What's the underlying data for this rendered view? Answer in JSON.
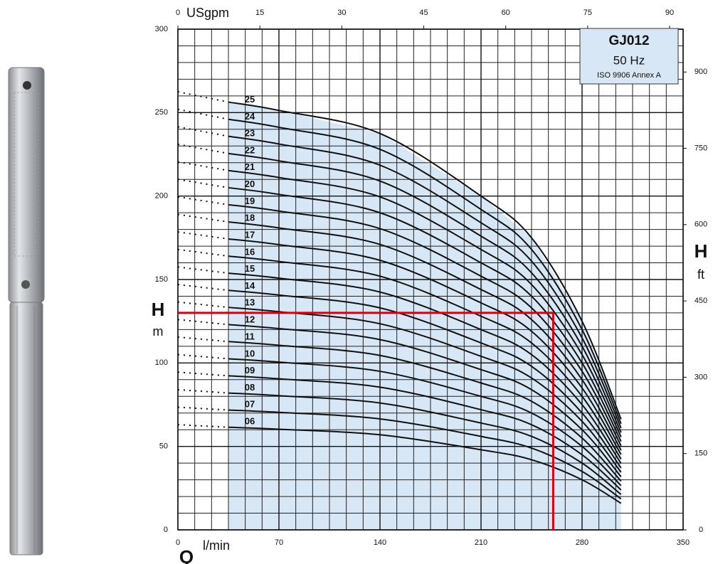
{
  "chart_data": {
    "type": "line",
    "model": "GJ012",
    "frequency": "50 Hz",
    "standard": "ISO 9906 Annex A",
    "x_axis_symbol": "Q",
    "x_axis_unit": "l/min",
    "x2_axis_unit": "USgpm",
    "y_axis_symbol": "H",
    "y_axis_unit": "m",
    "y2_axis_symbol": "H",
    "y2_axis_unit": "ft",
    "x": [
      0,
      35,
      70,
      140,
      210,
      245,
      280,
      307
    ],
    "xlim": [
      0,
      350
    ],
    "xticks": [
      0,
      70,
      140,
      210,
      280,
      350
    ],
    "x2lim": [
      0,
      92.47
    ],
    "x2ticks": [
      0,
      15,
      30,
      45,
      60,
      75,
      90
    ],
    "ylim": [
      0,
      300
    ],
    "yticks": [
      0,
      50,
      100,
      150,
      200,
      250,
      300
    ],
    "y2lim": [
      0,
      984.25
    ],
    "y2ticks": [
      0,
      150,
      300,
      450,
      600,
      750,
      900
    ],
    "grid": true,
    "line_color": "#111111",
    "area_color": "#d8e7f6",
    "box_color": "#d8e7f6",
    "series": [
      {
        "name": "06",
        "values": [
          63,
          61.5,
          60.3,
          57,
          48,
          42,
          30,
          15.9
        ]
      },
      {
        "name": "07",
        "values": [
          73.5,
          71.8,
          70.4,
          66.5,
          56,
          49,
          35,
          18.6
        ]
      },
      {
        "name": "08",
        "values": [
          84,
          82,
          80.4,
          76,
          64,
          56,
          40,
          21.2
        ]
      },
      {
        "name": "09",
        "values": [
          94.5,
          92.3,
          90.5,
          85.5,
          72,
          63,
          45,
          23.9
        ]
      },
      {
        "name": "10",
        "values": [
          105,
          102.5,
          100.5,
          95,
          80,
          70,
          50,
          26.5
        ]
      },
      {
        "name": "11",
        "values": [
          115.5,
          112.8,
          110.6,
          104.5,
          88,
          77,
          55,
          29.2
        ]
      },
      {
        "name": "12",
        "values": [
          126,
          123,
          120.6,
          114,
          96,
          84,
          60,
          31.8
        ]
      },
      {
        "name": "13",
        "values": [
          136.5,
          133.3,
          130.7,
          123.5,
          104,
          91,
          65,
          34.5
        ]
      },
      {
        "name": "14",
        "values": [
          147,
          143.5,
          140.7,
          133,
          112,
          98,
          70,
          37.1
        ]
      },
      {
        "name": "15",
        "values": [
          157.5,
          153.8,
          150.8,
          142.5,
          120,
          105,
          75,
          39.8
        ]
      },
      {
        "name": "16",
        "values": [
          168,
          164,
          160.8,
          152,
          128,
          112,
          80,
          42.4
        ]
      },
      {
        "name": "17",
        "values": [
          178.5,
          174.3,
          170.9,
          161.5,
          136,
          119,
          85,
          45.1
        ]
      },
      {
        "name": "18",
        "values": [
          189,
          184.5,
          180.9,
          171,
          144,
          126,
          90,
          47.7
        ]
      },
      {
        "name": "19",
        "values": [
          199.5,
          194.8,
          191,
          180.5,
          152,
          133,
          95,
          50.4
        ]
      },
      {
        "name": "20",
        "values": [
          210,
          205,
          201,
          190,
          160,
          140,
          100,
          53
        ]
      },
      {
        "name": "21",
        "values": [
          220.5,
          215.3,
          211.1,
          199.5,
          168,
          147,
          105,
          55.7
        ]
      },
      {
        "name": "22",
        "values": [
          231,
          225.5,
          221.1,
          209,
          176,
          154,
          110,
          58.3
        ]
      },
      {
        "name": "23",
        "values": [
          241.5,
          235.8,
          231.2,
          218.5,
          184,
          161,
          115,
          61
        ]
      },
      {
        "name": "24",
        "values": [
          252,
          246,
          241.2,
          228,
          192,
          168,
          120,
          63.6
        ]
      },
      {
        "name": "25",
        "values": [
          262.5,
          256.3,
          251.3,
          237.5,
          200,
          175,
          125,
          66.3
        ]
      }
    ],
    "duty_point": {
      "x": 260,
      "y": 130,
      "color": "#d0021b"
    }
  }
}
